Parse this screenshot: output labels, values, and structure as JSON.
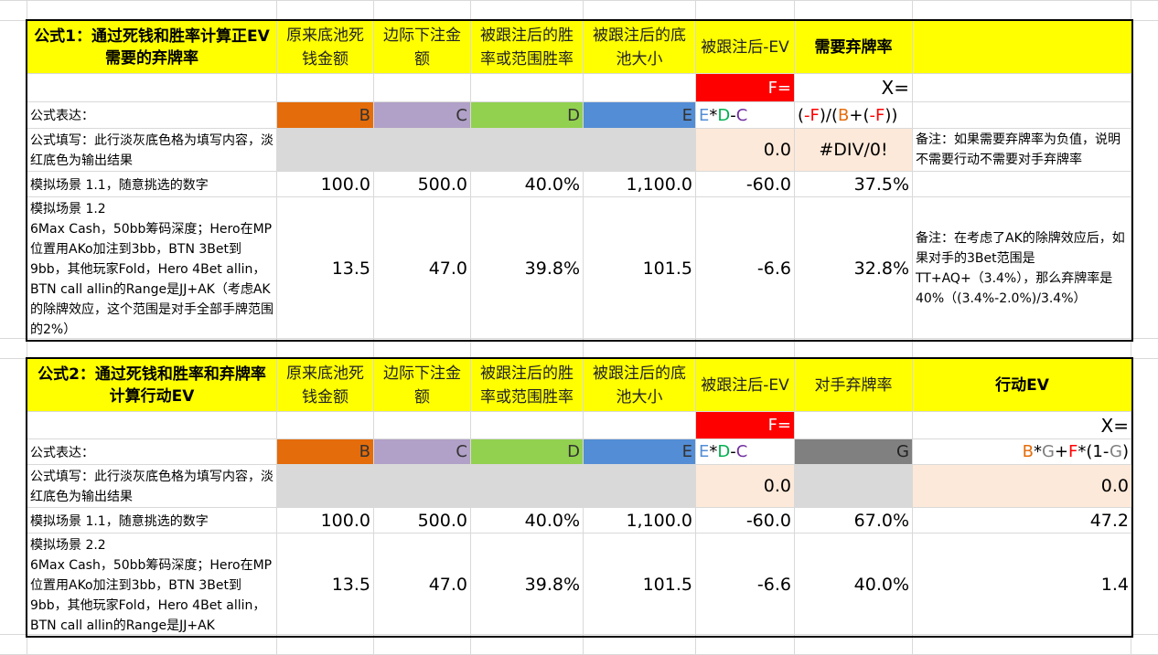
{
  "colors": {
    "B": "#e46c0a",
    "C": "#b1a0c7",
    "D": "#92d050",
    "E": "#538dd5",
    "F": "#ff0000",
    "G": "#808080",
    "yellow": "#ffff00",
    "input": "#d9d9d9",
    "output": "#fde9d9"
  },
  "section1": {
    "title": "公式1：通过死钱和胜率计算正EV需要的弃牌率",
    "headers": [
      "原来底池死钱金额",
      "边际下注金额",
      "被跟注后的胜率或范围胜率",
      "被跟注后的底池大小",
      "被跟注后-EV",
      "需要弃牌率"
    ],
    "f_label": "F=",
    "x_label": "X=",
    "row_formula_label": "公式表达：",
    "tags": [
      "B",
      "C",
      "D",
      "E"
    ],
    "ev_formula": [
      "E",
      "*",
      "D",
      "-",
      "C"
    ],
    "x_formula": [
      "(",
      "-F",
      ")/(",
      "B",
      "+(",
      "-F",
      "))"
    ],
    "row_fill_label": "公式填写：此行淡灰底色格为填写内容，淡红底色为输出结果",
    "fill_ev": "0.0",
    "fill_x": "#DIV/0!",
    "fill_note": "备注：如果需要弃牌率为负值，说明不需要行动不需要对手弃牌率",
    "scenario1_label": "模拟场景 1.1，随意挑选的数字",
    "scenario1_values": [
      "100.0",
      "500.0",
      "40.0%",
      "1,100.0",
      "-60.0",
      "37.5%"
    ],
    "scenario2_label": "模拟场景 1.2\n6Max Cash，50bb筹码深度；Hero在MP位置用AKo加注到3bb，BTN 3Bet到9bb，其他玩家Fold，Hero 4Bet allin，BTN call allin的Range是JJ+AK（考虑AK的除牌效应，这个范围是对手全部手牌范围的2%）",
    "scenario2_values": [
      "13.5",
      "47.0",
      "39.8%",
      "101.5",
      "-6.6",
      "32.8%"
    ],
    "scenario2_note": "备注：在考虑了AK的除牌效应后，如果对手的3Bet范围是TT+AQ+（3.4%），那么弃牌率是40%（(3.4%-2.0%)/3.4%）"
  },
  "section2": {
    "title": "公式2：通过死钱和胜率和弃牌率计算行动EV",
    "headers": [
      "原来底池死钱金额",
      "边际下注金额",
      "被跟注后的胜率或范围胜率",
      "被跟注后的底池大小",
      "被跟注后-EV",
      "对手弃牌率",
      "行动EV"
    ],
    "f_label": "F=",
    "x_label": "X=",
    "row_formula_label": "公式表达：",
    "tags": [
      "B",
      "C",
      "D",
      "E",
      "G"
    ],
    "ev_formula": [
      "E",
      "*",
      "D",
      "-",
      "C"
    ],
    "x_formula": [
      "B",
      "*",
      "G",
      "+",
      "F",
      "*(1-",
      "G",
      ")"
    ],
    "row_fill_label": "公式填写：此行淡灰底色格为填写内容，淡红底色为输出结果",
    "fill_ev": "0.0",
    "fill_x": "0.0",
    "scenario1_label": "模拟场景 1.1，随意挑选的数字",
    "scenario1_values": [
      "100.0",
      "500.0",
      "40.0%",
      "1,100.0",
      "-60.0",
      "67.0%",
      "47.2"
    ],
    "scenario2_label": "模拟场景 2.2\n6Max Cash，50bb筹码深度；Hero在MP位置用AKo加注到3bb，BTN 3Bet到9bb，其他玩家Fold，Hero 4Bet allin，BTN call allin的Range是JJ+AK",
    "scenario2_values": [
      "13.5",
      "47.0",
      "39.8%",
      "101.5",
      "-6.6",
      "40.0%",
      "1.4"
    ]
  }
}
